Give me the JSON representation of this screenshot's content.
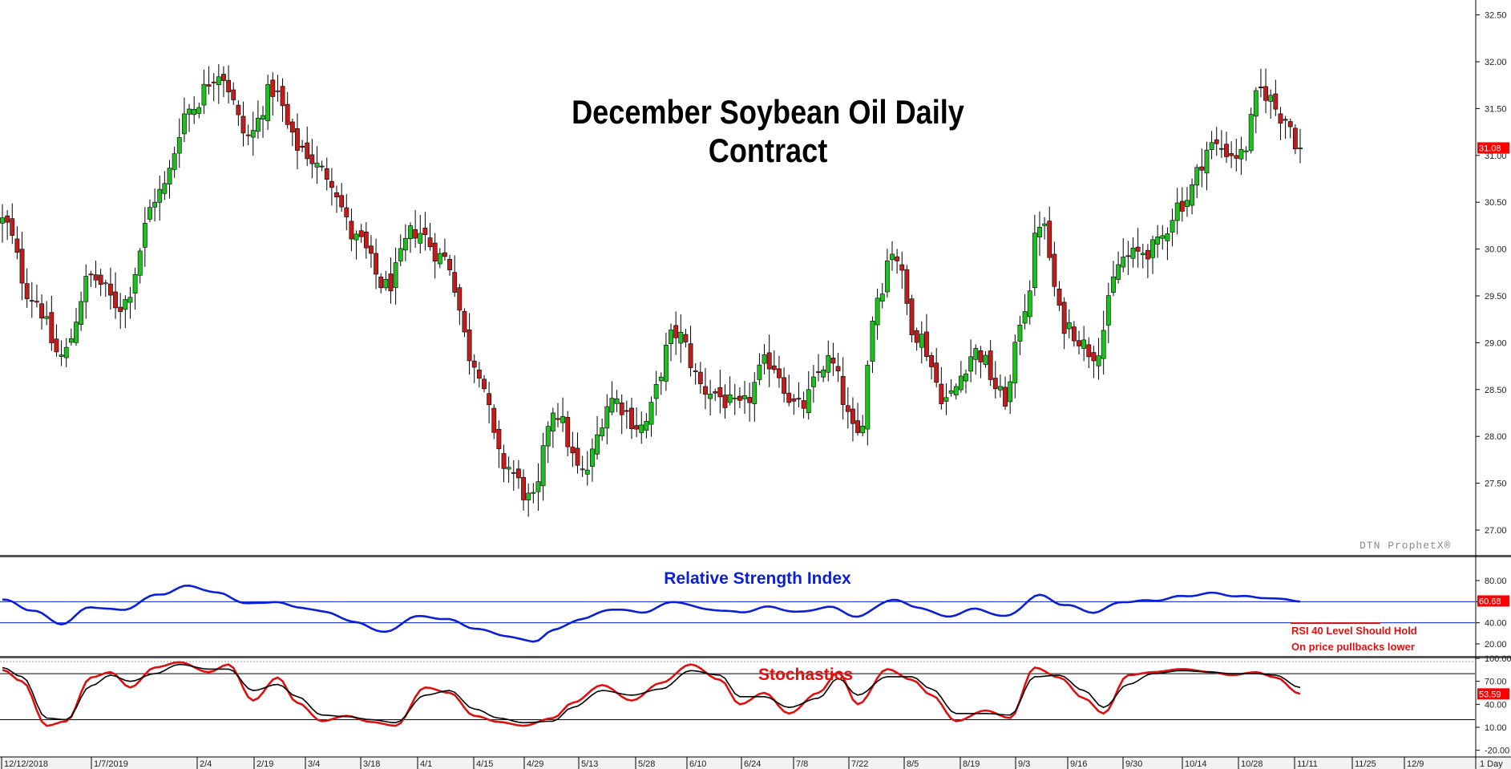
{
  "chart_title": "December Soybean Oil Daily Contract",
  "watermark": "DTN ProphetX®",
  "colors": {
    "up": "#1fbf1f",
    "down": "#c41b1b",
    "rsi": "#0a1fd6",
    "stoch_k": "#e01010",
    "stoch_d": "#000000",
    "last_price_bg": "#ff0000"
  },
  "chart_data": [
    {
      "type": "candlestick",
      "title": "December Soybean Oil Daily Contract",
      "y_ticks": [
        "27.00",
        "27.50",
        "28.00",
        "28.50",
        "29.00",
        "29.50",
        "30.00",
        "30.50",
        "31.00",
        "31.50",
        "32.00",
        "32.50"
      ],
      "ylim": [
        26.75,
        32.65
      ],
      "last_price": "31.08",
      "grid": false,
      "x_ticks": [
        "12/12/2018",
        "1/7/2019",
        "2/4",
        "2/19",
        "3/4",
        "3/18",
        "4/1",
        "4/15",
        "4/29",
        "5/13",
        "5/28",
        "6/10",
        "6/24",
        "7/8",
        "7/22",
        "8/5",
        "8/19",
        "9/3",
        "9/16",
        "9/30",
        "10/14",
        "10/28",
        "11/11",
        "11/25",
        "12/9"
      ],
      "anchors": [
        {
          "d": 0,
          "v": 30.3
        },
        {
          "d": 6,
          "v": 29.5
        },
        {
          "d": 12,
          "v": 28.85
        },
        {
          "d": 18,
          "v": 29.7
        },
        {
          "d": 24,
          "v": 29.4
        },
        {
          "d": 32,
          "v": 30.6
        },
        {
          "d": 38,
          "v": 31.5
        },
        {
          "d": 44,
          "v": 31.9
        },
        {
          "d": 50,
          "v": 31.2
        },
        {
          "d": 55,
          "v": 31.7
        },
        {
          "d": 60,
          "v": 31.1
        },
        {
          "d": 66,
          "v": 30.8
        },
        {
          "d": 72,
          "v": 30.1
        },
        {
          "d": 78,
          "v": 29.6
        },
        {
          "d": 84,
          "v": 30.2
        },
        {
          "d": 90,
          "v": 29.9
        },
        {
          "d": 96,
          "v": 28.8
        },
        {
          "d": 102,
          "v": 27.7
        },
        {
          "d": 108,
          "v": 27.3
        },
        {
          "d": 112,
          "v": 28.3
        },
        {
          "d": 118,
          "v": 27.6
        },
        {
          "d": 124,
          "v": 28.4
        },
        {
          "d": 130,
          "v": 28.1
        },
        {
          "d": 137,
          "v": 29.1
        },
        {
          "d": 143,
          "v": 28.5
        },
        {
          "d": 150,
          "v": 28.3
        },
        {
          "d": 156,
          "v": 28.8
        },
        {
          "d": 162,
          "v": 28.3
        },
        {
          "d": 168,
          "v": 28.8
        },
        {
          "d": 174,
          "v": 28.0
        },
        {
          "d": 178,
          "v": 29.5
        },
        {
          "d": 181,
          "v": 30.0
        },
        {
          "d": 186,
          "v": 29.1
        },
        {
          "d": 192,
          "v": 28.4
        },
        {
          "d": 198,
          "v": 28.9
        },
        {
          "d": 204,
          "v": 28.4
        },
        {
          "d": 208,
          "v": 29.4
        },
        {
          "d": 211,
          "v": 30.3
        },
        {
          "d": 216,
          "v": 29.2
        },
        {
          "d": 222,
          "v": 28.9
        },
        {
          "d": 228,
          "v": 29.9
        },
        {
          "d": 234,
          "v": 30.0
        },
        {
          "d": 240,
          "v": 30.5
        },
        {
          "d": 246,
          "v": 31.1
        },
        {
          "d": 252,
          "v": 31.0
        },
        {
          "d": 256,
          "v": 31.7
        },
        {
          "d": 261,
          "v": 31.4
        },
        {
          "d": 264,
          "v": 31.08
        }
      ]
    },
    {
      "type": "line",
      "title": "Relative Strength Index",
      "y_ticks": [
        "20.00",
        "40.00",
        "60.00",
        "80.00"
      ],
      "ylim": [
        12,
        92
      ],
      "reference_lines": [
        60,
        40
      ],
      "last_value": "60.68",
      "anchors": [
        {
          "d": 0,
          "v": 62
        },
        {
          "d": 6,
          "v": 52
        },
        {
          "d": 12,
          "v": 39
        },
        {
          "d": 18,
          "v": 55
        },
        {
          "d": 24,
          "v": 52
        },
        {
          "d": 32,
          "v": 67
        },
        {
          "d": 38,
          "v": 75
        },
        {
          "d": 44,
          "v": 68
        },
        {
          "d": 50,
          "v": 58
        },
        {
          "d": 55,
          "v": 60
        },
        {
          "d": 60,
          "v": 55
        },
        {
          "d": 66,
          "v": 50
        },
        {
          "d": 72,
          "v": 40
        },
        {
          "d": 78,
          "v": 31
        },
        {
          "d": 84,
          "v": 46
        },
        {
          "d": 90,
          "v": 44
        },
        {
          "d": 96,
          "v": 35
        },
        {
          "d": 102,
          "v": 28
        },
        {
          "d": 108,
          "v": 22
        },
        {
          "d": 112,
          "v": 33
        },
        {
          "d": 118,
          "v": 44
        },
        {
          "d": 124,
          "v": 53
        },
        {
          "d": 130,
          "v": 50
        },
        {
          "d": 137,
          "v": 60
        },
        {
          "d": 143,
          "v": 53
        },
        {
          "d": 150,
          "v": 50
        },
        {
          "d": 156,
          "v": 55
        },
        {
          "d": 162,
          "v": 50
        },
        {
          "d": 168,
          "v": 55
        },
        {
          "d": 174,
          "v": 46
        },
        {
          "d": 181,
          "v": 62
        },
        {
          "d": 186,
          "v": 55
        },
        {
          "d": 192,
          "v": 46
        },
        {
          "d": 198,
          "v": 53
        },
        {
          "d": 204,
          "v": 46
        },
        {
          "d": 211,
          "v": 66
        },
        {
          "d": 216,
          "v": 57
        },
        {
          "d": 222,
          "v": 50
        },
        {
          "d": 228,
          "v": 60
        },
        {
          "d": 234,
          "v": 61
        },
        {
          "d": 240,
          "v": 65
        },
        {
          "d": 246,
          "v": 68
        },
        {
          "d": 252,
          "v": 65
        },
        {
          "d": 256,
          "v": 64
        },
        {
          "d": 261,
          "v": 62
        },
        {
          "d": 264,
          "v": 60.68
        }
      ],
      "annotations": [
        "RSI 40 Level Should Hold",
        "On price pullbacks lower"
      ]
    },
    {
      "type": "line",
      "title": "Stochastics",
      "y_ticks": [
        "-20.00",
        "10.00",
        "40.00",
        "70.00",
        "100.00"
      ],
      "ylim": [
        -30,
        120
      ],
      "reference_lines": [
        80,
        20
      ],
      "last_value": "53.59",
      "series": [
        {
          "name": "",
          "anchors": [
            {
              "d": 0,
              "v": 85
            },
            {
              "d": 4,
              "v": 70
            },
            {
              "d": 9,
              "v": 12
            },
            {
              "d": 13,
              "v": 18
            },
            {
              "d": 18,
              "v": 75
            },
            {
              "d": 22,
              "v": 82
            },
            {
              "d": 26,
              "v": 62
            },
            {
              "d": 31,
              "v": 88
            },
            {
              "d": 36,
              "v": 95
            },
            {
              "d": 42,
              "v": 82
            },
            {
              "d": 46,
              "v": 92
            },
            {
              "d": 51,
              "v": 45
            },
            {
              "d": 56,
              "v": 75
            },
            {
              "d": 60,
              "v": 42
            },
            {
              "d": 65,
              "v": 18
            },
            {
              "d": 70,
              "v": 25
            },
            {
              "d": 75,
              "v": 17
            },
            {
              "d": 80,
              "v": 12
            },
            {
              "d": 86,
              "v": 62
            },
            {
              "d": 91,
              "v": 55
            },
            {
              "d": 96,
              "v": 25
            },
            {
              "d": 101,
              "v": 17
            },
            {
              "d": 106,
              "v": 12
            },
            {
              "d": 112,
              "v": 22
            },
            {
              "d": 116,
              "v": 42
            },
            {
              "d": 122,
              "v": 65
            },
            {
              "d": 128,
              "v": 45
            },
            {
              "d": 134,
              "v": 68
            },
            {
              "d": 140,
              "v": 92
            },
            {
              "d": 146,
              "v": 72
            },
            {
              "d": 150,
              "v": 40
            },
            {
              "d": 155,
              "v": 55
            },
            {
              "d": 160,
              "v": 28
            },
            {
              "d": 166,
              "v": 55
            },
            {
              "d": 170,
              "v": 82
            },
            {
              "d": 174,
              "v": 40
            },
            {
              "d": 180,
              "v": 86
            },
            {
              "d": 185,
              "v": 72
            },
            {
              "d": 189,
              "v": 52
            },
            {
              "d": 194,
              "v": 18
            },
            {
              "d": 200,
              "v": 32
            },
            {
              "d": 205,
              "v": 22
            },
            {
              "d": 210,
              "v": 88
            },
            {
              "d": 215,
              "v": 75
            },
            {
              "d": 220,
              "v": 48
            },
            {
              "d": 224,
              "v": 28
            },
            {
              "d": 229,
              "v": 78
            },
            {
              "d": 234,
              "v": 82
            },
            {
              "d": 240,
              "v": 86
            },
            {
              "d": 246,
              "v": 82
            },
            {
              "d": 250,
              "v": 78
            },
            {
              "d": 255,
              "v": 82
            },
            {
              "d": 259,
              "v": 75
            },
            {
              "d": 264,
              "v": 53.59
            }
          ]
        },
        {
          "name": "",
          "anchors": [
            {
              "d": 0,
              "v": 88
            },
            {
              "d": 4,
              "v": 76
            },
            {
              "d": 9,
              "v": 22
            },
            {
              "d": 13,
              "v": 20
            },
            {
              "d": 18,
              "v": 64
            },
            {
              "d": 22,
              "v": 78
            },
            {
              "d": 26,
              "v": 70
            },
            {
              "d": 31,
              "v": 80
            },
            {
              "d": 36,
              "v": 92
            },
            {
              "d": 42,
              "v": 86
            },
            {
              "d": 46,
              "v": 86
            },
            {
              "d": 51,
              "v": 58
            },
            {
              "d": 56,
              "v": 66
            },
            {
              "d": 60,
              "v": 50
            },
            {
              "d": 65,
              "v": 26
            },
            {
              "d": 70,
              "v": 24
            },
            {
              "d": 75,
              "v": 20
            },
            {
              "d": 80,
              "v": 16
            },
            {
              "d": 86,
              "v": 52
            },
            {
              "d": 91,
              "v": 58
            },
            {
              "d": 96,
              "v": 34
            },
            {
              "d": 101,
              "v": 22
            },
            {
              "d": 106,
              "v": 16
            },
            {
              "d": 112,
              "v": 18
            },
            {
              "d": 116,
              "v": 36
            },
            {
              "d": 122,
              "v": 58
            },
            {
              "d": 128,
              "v": 52
            },
            {
              "d": 134,
              "v": 60
            },
            {
              "d": 140,
              "v": 84
            },
            {
              "d": 146,
              "v": 78
            },
            {
              "d": 150,
              "v": 50
            },
            {
              "d": 155,
              "v": 50
            },
            {
              "d": 160,
              "v": 36
            },
            {
              "d": 166,
              "v": 48
            },
            {
              "d": 170,
              "v": 74
            },
            {
              "d": 174,
              "v": 52
            },
            {
              "d": 180,
              "v": 76
            },
            {
              "d": 185,
              "v": 76
            },
            {
              "d": 189,
              "v": 60
            },
            {
              "d": 194,
              "v": 28
            },
            {
              "d": 200,
              "v": 28
            },
            {
              "d": 205,
              "v": 26
            },
            {
              "d": 210,
              "v": 76
            },
            {
              "d": 215,
              "v": 78
            },
            {
              "d": 220,
              "v": 58
            },
            {
              "d": 224,
              "v": 36
            },
            {
              "d": 229,
              "v": 66
            },
            {
              "d": 234,
              "v": 80
            },
            {
              "d": 240,
              "v": 84
            },
            {
              "d": 246,
              "v": 82
            },
            {
              "d": 250,
              "v": 80
            },
            {
              "d": 255,
              "v": 80
            },
            {
              "d": 259,
              "v": 78
            },
            {
              "d": 264,
              "v": 62
            }
          ]
        }
      ]
    }
  ],
  "timeframe": "1 Day"
}
